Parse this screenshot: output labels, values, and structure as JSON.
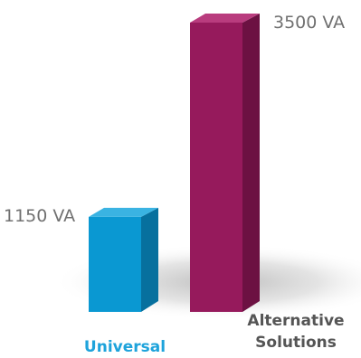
{
  "chart_data": {
    "type": "bar",
    "title": "",
    "xlabel": "",
    "ylabel": "",
    "unit": "VA",
    "categories": [
      "Universal",
      "Alternative Solutions"
    ],
    "category_lines": [
      [
        "Universal"
      ],
      [
        "Alternative",
        "Solutions"
      ]
    ],
    "values": [
      1150,
      3500
    ],
    "value_labels": [
      "1150 VA",
      "3500 VA"
    ],
    "ylim": [
      0,
      3500
    ],
    "grid": false,
    "legend": "none",
    "colors": {
      "Universal": {
        "front": "#0a98d2",
        "side": "#07709e",
        "top": "#3ab3e2",
        "label": "#1ea3db"
      },
      "Alternative Solutions": {
        "front": "#961a5c",
        "side": "#6c1142",
        "top": "#b93c7e",
        "label": "#555555"
      }
    }
  }
}
